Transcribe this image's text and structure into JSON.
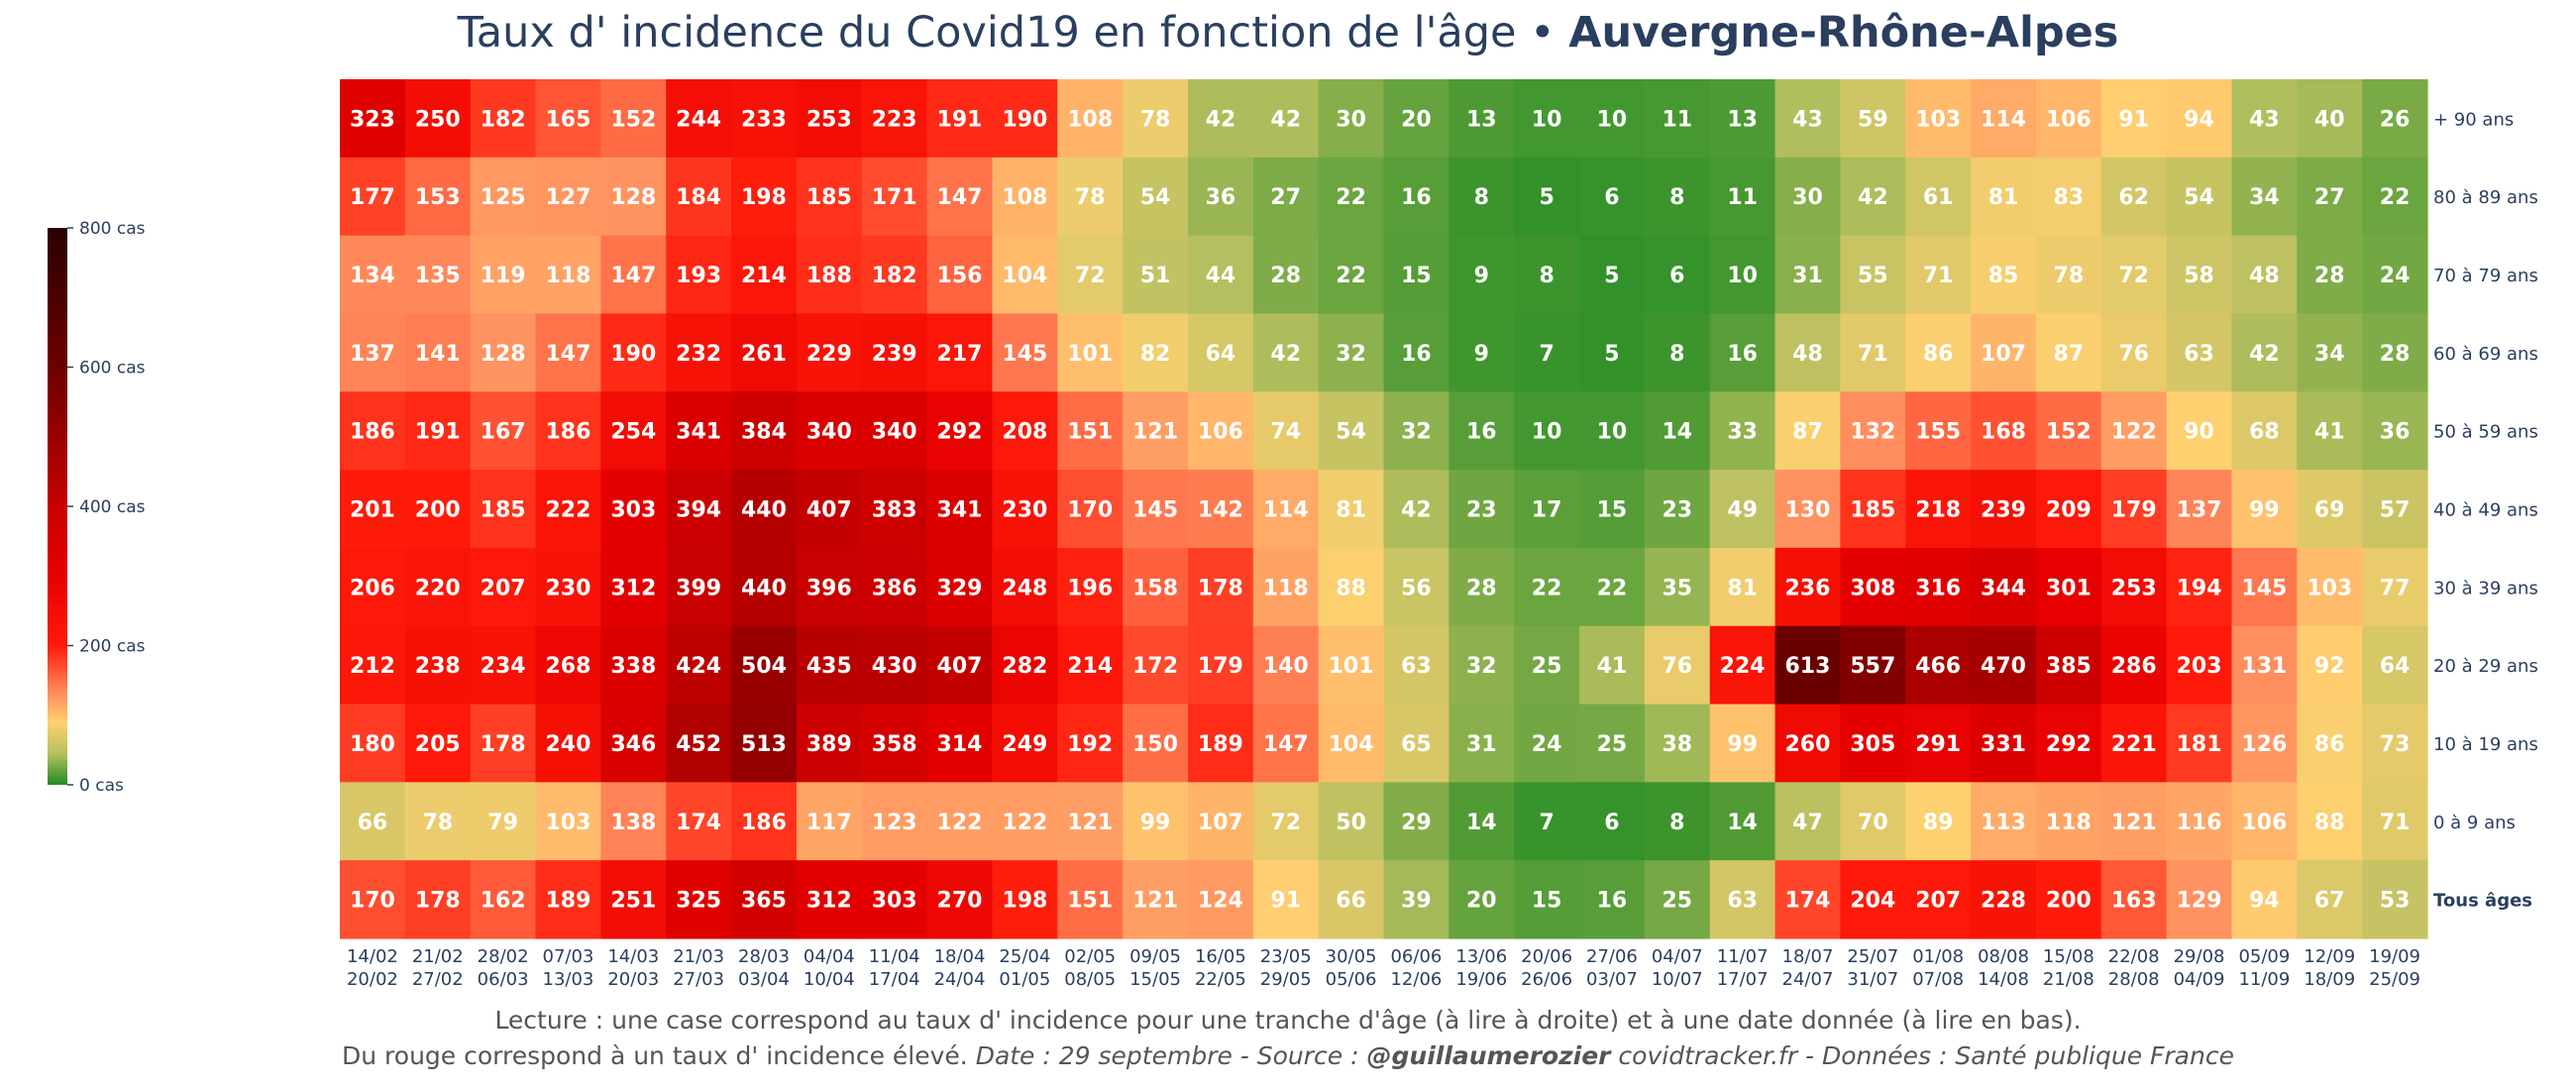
{
  "title": {
    "main": "Taux d' incidence du Covid19 en fonction de l'âge •",
    "region": "Auvergne-Rhône-Alpes"
  },
  "footer": {
    "line1": "Lecture : une case correspond au taux d' incidence pour une tranche d'âge (à lire à droite) et à une date donnée (à lire en bas).",
    "line2_start": "Du rouge correspond à un taux d' incidence élevé.  ",
    "date_source": "Date : 29 septembre - Source : ",
    "author": "@guillaumerozier",
    "site": " covidtracker.fr - Données : Santé publique France"
  },
  "colorbar": {
    "ticks": [
      {
        "value": 800,
        "label": "800 cas"
      },
      {
        "value": 600,
        "label": "600 cas"
      },
      {
        "value": 400,
        "label": "400 cas"
      },
      {
        "value": 200,
        "label": "200 cas"
      },
      {
        "value": 0,
        "label": "0 cas"
      }
    ],
    "range": [
      0,
      800
    ],
    "colorscale": [
      [
        0,
        "#228b22"
      ],
      [
        45,
        "#b8c060"
      ],
      [
        90,
        "#ffd070"
      ],
      [
        130,
        "#ff9060"
      ],
      [
        200,
        "#ff1a0a"
      ],
      [
        300,
        "#e60000"
      ],
      [
        400,
        "#c80000"
      ],
      [
        500,
        "#9a0000"
      ],
      [
        600,
        "#6e0000"
      ],
      [
        800,
        "#2b0000"
      ]
    ]
  },
  "chart_data": {
    "type": "heatmap",
    "x": [
      "14/02\n20/02",
      "21/02\n27/02",
      "28/02\n06/03",
      "07/03\n13/03",
      "14/03\n20/03",
      "21/03\n27/03",
      "28/03\n03/04",
      "04/04\n10/04",
      "11/04\n17/04",
      "18/04\n24/04",
      "25/04\n01/05",
      "02/05\n08/05",
      "09/05\n15/05",
      "16/05\n22/05",
      "23/05\n29/05",
      "30/05\n05/06",
      "06/06\n12/06",
      "13/06\n19/06",
      "20/06\n26/06",
      "27/06\n03/07",
      "04/07\n10/07",
      "11/07\n17/07",
      "18/07\n24/07",
      "25/07\n31/07",
      "01/08\n07/08",
      "08/08\n14/08",
      "15/08\n21/08",
      "22/08\n28/08",
      "29/08\n04/09",
      "05/09\n11/09",
      "12/09\n18/09",
      "19/09\n25/09"
    ],
    "y": [
      "+ 90 ans",
      "80 à 89 ans",
      "70 à 79 ans",
      "60 à 69 ans",
      "50 à 59 ans",
      "40 à 49 ans",
      "30 à 39 ans",
      "20 à 29 ans",
      "10 à 19 ans",
      "0 à 9 ans",
      "Tous âges"
    ],
    "y_bold": [
      false,
      false,
      false,
      false,
      false,
      false,
      false,
      false,
      false,
      false,
      true
    ],
    "z": [
      [
        323,
        250,
        182,
        165,
        152,
        244,
        233,
        253,
        223,
        191,
        190,
        108,
        78,
        42,
        42,
        30,
        20,
        13,
        10,
        10,
        11,
        13,
        43,
        59,
        103,
        114,
        106,
        91,
        94,
        43,
        40,
        26
      ],
      [
        177,
        153,
        125,
        127,
        128,
        184,
        198,
        185,
        171,
        147,
        108,
        78,
        54,
        36,
        27,
        22,
        16,
        8,
        5,
        6,
        8,
        11,
        30,
        42,
        61,
        81,
        83,
        62,
        54,
        34,
        27,
        22
      ],
      [
        134,
        135,
        119,
        118,
        147,
        193,
        214,
        188,
        182,
        156,
        104,
        72,
        51,
        44,
        28,
        22,
        15,
        9,
        8,
        5,
        6,
        10,
        31,
        55,
        71,
        85,
        78,
        72,
        58,
        48,
        28,
        24
      ],
      [
        137,
        141,
        128,
        147,
        190,
        232,
        261,
        229,
        239,
        217,
        145,
        101,
        82,
        64,
        42,
        32,
        16,
        9,
        7,
        5,
        8,
        16,
        48,
        71,
        86,
        107,
        87,
        76,
        63,
        42,
        34,
        28
      ],
      [
        186,
        191,
        167,
        186,
        254,
        341,
        384,
        340,
        340,
        292,
        208,
        151,
        121,
        106,
        74,
        54,
        32,
        16,
        10,
        10,
        14,
        33,
        87,
        132,
        155,
        168,
        152,
        122,
        90,
        68,
        41,
        36
      ],
      [
        201,
        200,
        185,
        222,
        303,
        394,
        440,
        407,
        383,
        341,
        230,
        170,
        145,
        142,
        114,
        81,
        42,
        23,
        17,
        15,
        23,
        49,
        130,
        185,
        218,
        239,
        209,
        179,
        137,
        99,
        69,
        57
      ],
      [
        206,
        220,
        207,
        230,
        312,
        399,
        440,
        396,
        386,
        329,
        248,
        196,
        158,
        178,
        118,
        88,
        56,
        28,
        22,
        22,
        35,
        81,
        236,
        308,
        316,
        344,
        301,
        253,
        194,
        145,
        103,
        77
      ],
      [
        212,
        238,
        234,
        268,
        338,
        424,
        504,
        435,
        430,
        407,
        282,
        214,
        172,
        179,
        140,
        101,
        63,
        32,
        25,
        41,
        76,
        224,
        613,
        557,
        466,
        470,
        385,
        286,
        203,
        131,
        92,
        64
      ],
      [
        180,
        205,
        178,
        240,
        346,
        452,
        513,
        389,
        358,
        314,
        249,
        192,
        150,
        189,
        147,
        104,
        65,
        31,
        24,
        25,
        38,
        99,
        260,
        305,
        291,
        331,
        292,
        221,
        181,
        126,
        86,
        73
      ],
      [
        66,
        78,
        79,
        103,
        138,
        174,
        186,
        117,
        123,
        122,
        122,
        121,
        99,
        107,
        72,
        50,
        29,
        14,
        7,
        6,
        8,
        14,
        47,
        70,
        89,
        113,
        118,
        121,
        116,
        106,
        88,
        71
      ],
      [
        170,
        178,
        162,
        189,
        251,
        325,
        365,
        312,
        303,
        270,
        198,
        151,
        121,
        124,
        91,
        66,
        39,
        20,
        15,
        16,
        25,
        63,
        174,
        204,
        207,
        228,
        200,
        163,
        129,
        94,
        67,
        53
      ]
    ]
  }
}
